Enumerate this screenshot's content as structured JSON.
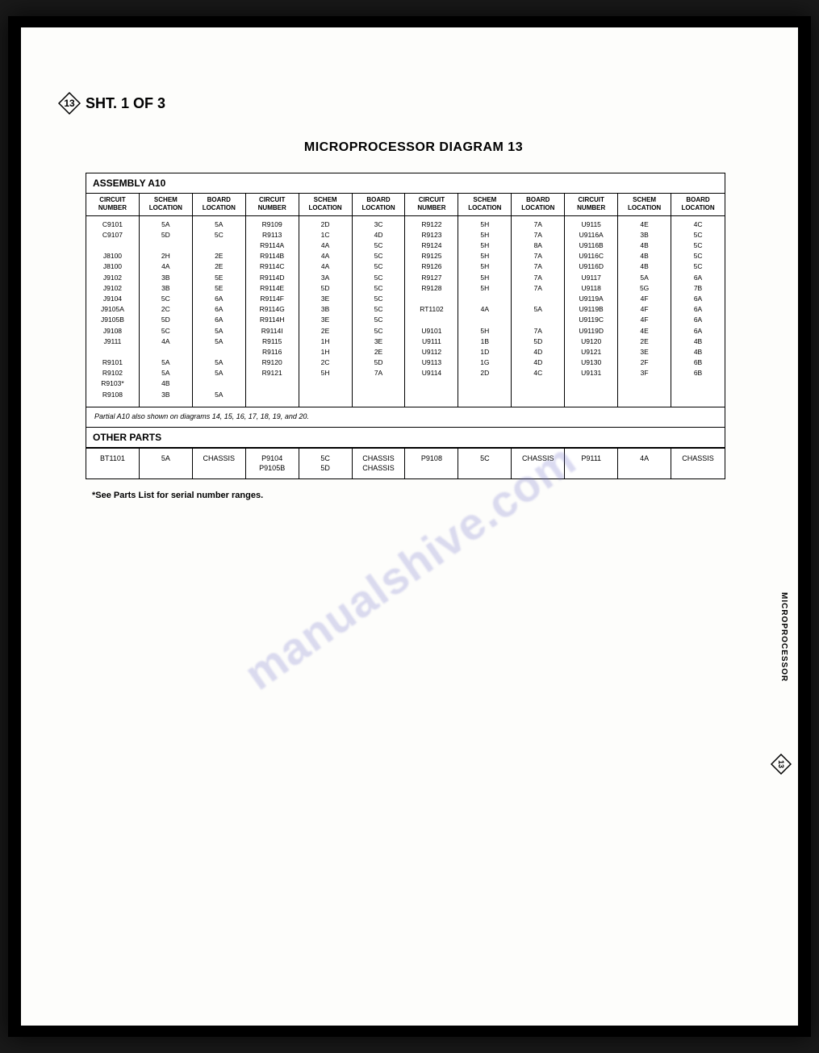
{
  "sheet_mark": {
    "number": "13",
    "text": "SHT. 1 OF 3"
  },
  "side_label": "MICROPROCESSOR",
  "side_diamond_number": "13",
  "title": "MICROPROCESSOR DIAGRAM 13",
  "assembly_label": "ASSEMBLY A10",
  "headers": [
    "CIRCUIT\nNUMBER",
    "SCHEM\nLOCATION",
    "BOARD\nLOCATION",
    "CIRCUIT\nNUMBER",
    "SCHEM\nLOCATION",
    "BOARD\nLOCATION",
    "CIRCUIT\nNUMBER",
    "SCHEM\nLOCATION",
    "BOARD\nLOCATION",
    "CIRCUIT\nNUMBER",
    "SCHEM\nLOCATION",
    "BOARD\nLOCATION"
  ],
  "cols": [
    [
      "C9101",
      "C9107",
      "",
      "J8100",
      "J8100",
      "J9102",
      "J9102",
      "J9104",
      "J9105A",
      "J9105B",
      "J9108",
      "J9111",
      "",
      "R9101",
      "R9102",
      "R9103*",
      "R9108"
    ],
    [
      "5A",
      "5D",
      "",
      "2H",
      "4A",
      "3B",
      "3B",
      "5C",
      "2C",
      "5D",
      "5C",
      "4A",
      "",
      "5A",
      "5A",
      "4B",
      "3B"
    ],
    [
      "5A",
      "5C",
      "",
      "2E",
      "2E",
      "5E",
      "5E",
      "6A",
      "6A",
      "6A",
      "5A",
      "5A",
      "",
      "5A",
      "5A",
      "",
      "5A"
    ],
    [
      "R9109",
      "R9113",
      "R9114A",
      "R9114B",
      "R9114C",
      "R9114D",
      "R9114E",
      "R9114F",
      "R9114G",
      "R9114H",
      "R9114I",
      "R9115",
      "R9116",
      "R9120",
      "R9121"
    ],
    [
      "2D",
      "1C",
      "4A",
      "4A",
      "4A",
      "3A",
      "5D",
      "3E",
      "3B",
      "3E",
      "2E",
      "1H",
      "1H",
      "2C",
      "5H"
    ],
    [
      "3C",
      "4D",
      "5C",
      "5C",
      "5C",
      "5C",
      "5C",
      "5C",
      "5C",
      "5C",
      "5C",
      "3E",
      "2E",
      "5D",
      "7A"
    ],
    [
      "R9122",
      "R9123",
      "R9124",
      "R9125",
      "R9126",
      "R9127",
      "R9128",
      "",
      "RT1102",
      "",
      "U9101",
      "U9111",
      "U9112",
      "U9113",
      "U9114"
    ],
    [
      "5H",
      "5H",
      "5H",
      "5H",
      "5H",
      "5H",
      "5H",
      "",
      "4A",
      "",
      "5H",
      "1B",
      "1D",
      "1G",
      "2D"
    ],
    [
      "7A",
      "7A",
      "8A",
      "7A",
      "7A",
      "7A",
      "7A",
      "",
      "5A",
      "",
      "7A",
      "5D",
      "4D",
      "4D",
      "4C"
    ],
    [
      "U9115",
      "U9116A",
      "U9116B",
      "U9116C",
      "U9116D",
      "U9117",
      "U9118",
      "U9119A",
      "U9119B",
      "U9119C",
      "U9119D",
      "U9120",
      "U9121",
      "U9130",
      "U9131"
    ],
    [
      "4E",
      "3B",
      "4B",
      "4B",
      "4B",
      "5A",
      "5G",
      "4F",
      "4F",
      "4F",
      "4E",
      "2E",
      "3E",
      "2F",
      "3F"
    ],
    [
      "4C",
      "5C",
      "5C",
      "5C",
      "5C",
      "6A",
      "7B",
      "6A",
      "6A",
      "6A",
      "6A",
      "4B",
      "4B",
      "6B",
      "6B"
    ]
  ],
  "partial_note": "Partial A10 also shown on diagrams 14, 15, 16, 17, 18, 19, and 20.",
  "other_label": "OTHER PARTS",
  "other_row": [
    "BT1101",
    "5A",
    "CHASSIS",
    "P9104\nP9105B",
    "5C\n5D",
    "CHASSIS\nCHASSIS",
    "P9108",
    "5C",
    "CHASSIS",
    "P9111",
    "4A",
    "CHASSIS"
  ],
  "see_note": "*See Parts List for serial number ranges.",
  "watermark": "manualshive.com"
}
